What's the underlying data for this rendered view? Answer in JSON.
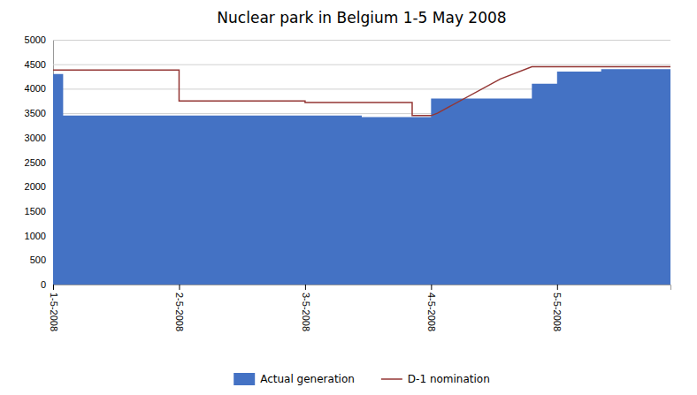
{
  "chart_data": {
    "type": "area",
    "title": "Nuclear park in Belgium 1-5 May 2008",
    "xlim": [
      0,
      4.9
    ],
    "xticks": [
      {
        "value": 0,
        "label": "1-5-2008"
      },
      {
        "value": 1,
        "label": "2-5-2008"
      },
      {
        "value": 2,
        "label": "3-5-2008"
      },
      {
        "value": 3,
        "label": "4-5-2008"
      },
      {
        "value": 4,
        "label": "5-5-2008"
      }
    ],
    "ylim": [
      0,
      5000
    ],
    "yticks": [
      0,
      500,
      1000,
      1500,
      2000,
      2500,
      3000,
      3500,
      4000,
      4500,
      5000
    ],
    "grid": true,
    "legend": "bottom",
    "series": [
      {
        "name": "Actual generation",
        "type": "area",
        "color": "#4472C4",
        "x": [
          0,
          0.08,
          0.08,
          1.0,
          1.0,
          2.45,
          2.45,
          2.55,
          2.55,
          3.0,
          3.0,
          3.55,
          3.55,
          3.8,
          3.8,
          4.0,
          4.0,
          4.35,
          4.35,
          4.9
        ],
        "values": [
          4300,
          4300,
          3450,
          3450,
          3450,
          3450,
          3420,
          3420,
          3420,
          3420,
          3800,
          3800,
          3800,
          3800,
          4100,
          4100,
          4350,
          4350,
          4400,
          4400
        ]
      },
      {
        "name": "D-1 nomination",
        "type": "line",
        "color": "#943634",
        "x": [
          0,
          1.0,
          1.0,
          1.0,
          1.0,
          2.0,
          2.0,
          2.85,
          2.85,
          3.0,
          3.0,
          3.05,
          3.05,
          3.55,
          3.55,
          3.8,
          3.8,
          4.9
        ],
        "values": [
          4380,
          4380,
          4380,
          3750,
          3750,
          3750,
          3720,
          3720,
          3450,
          3450,
          3450,
          3500,
          3500,
          4200,
          4200,
          4450,
          4450,
          4450
        ]
      }
    ]
  }
}
